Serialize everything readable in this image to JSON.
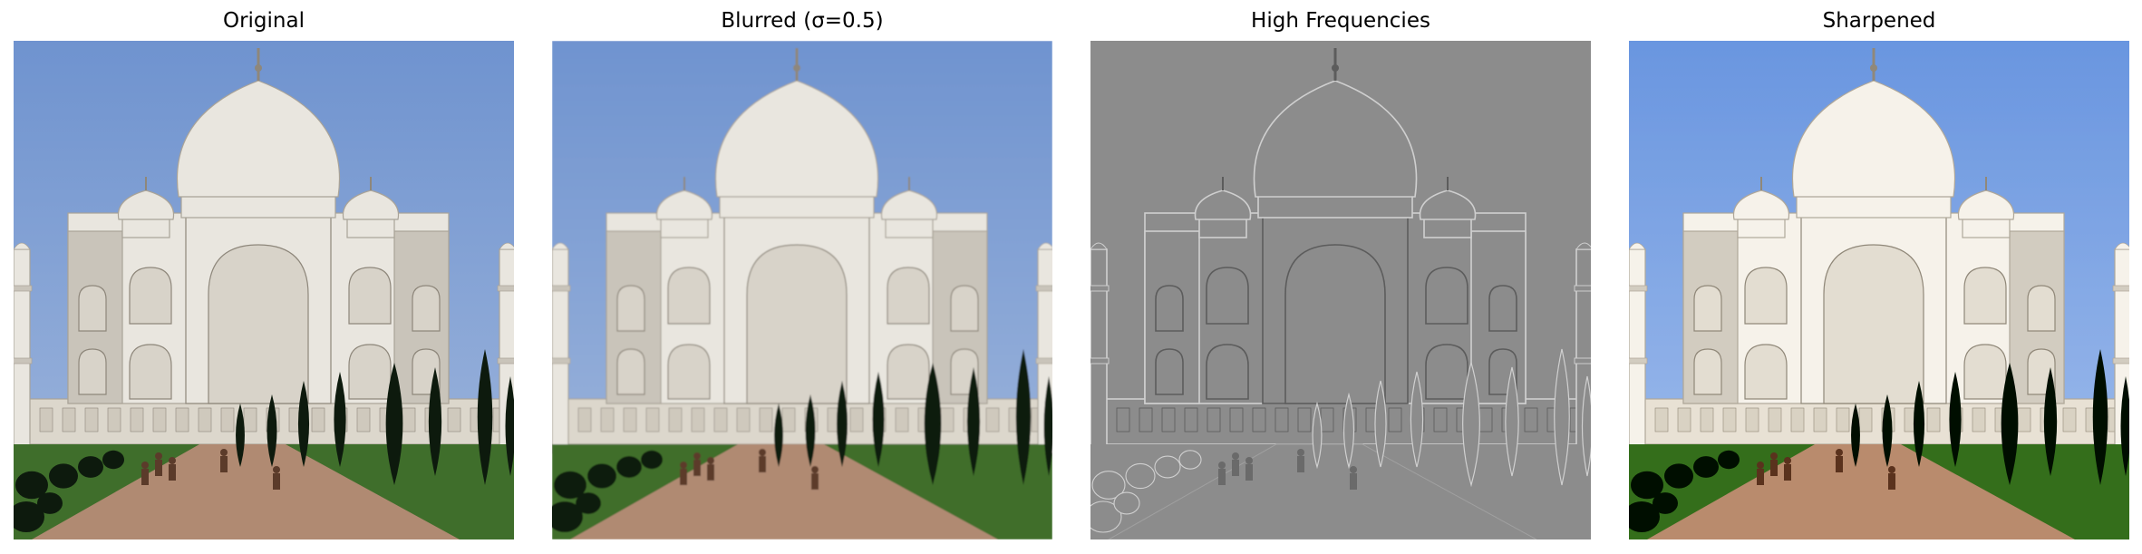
{
  "panels": [
    {
      "id": "original",
      "title": "Original",
      "variant": "color",
      "blur": 0,
      "contrast": 1.0,
      "saturation": 1.0
    },
    {
      "id": "blurred",
      "title": "Blurred (σ=0.5)",
      "variant": "color",
      "blur": 0.9,
      "contrast": 1.0,
      "saturation": 1.0
    },
    {
      "id": "high-frequencies",
      "title": "High Frequencies",
      "variant": "edges"
    },
    {
      "id": "sharpened",
      "title": "Sharpened",
      "variant": "color",
      "blur": 0,
      "contrast": 1.12,
      "saturation": 1.1
    }
  ],
  "colors": {
    "sky_top": "#6f93cf",
    "sky_bottom": "#9fb6dc",
    "marble": "#e9e6df",
    "marble_shadow": "#c9c4ba",
    "path": "#b08a72",
    "grass": "#3f6e2b",
    "tree": "#0d1a0d",
    "edge_gray": "#8c8c8c"
  }
}
